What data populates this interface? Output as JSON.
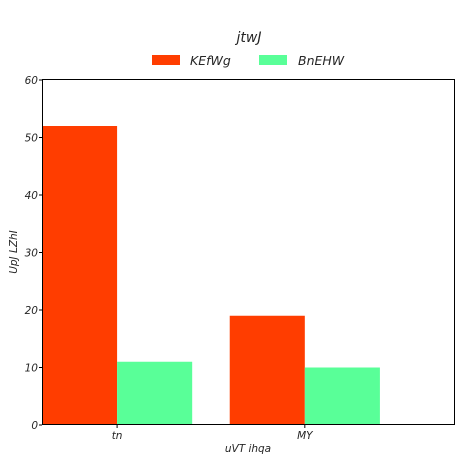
{
  "chart_data": {
    "type": "bar",
    "title": "jtwJ",
    "xlabel": "uVT ihqa",
    "ylabel": "UpJ LZhI",
    "categories": [
      "tn",
      "MY"
    ],
    "series": [
      {
        "name": "KEfWg",
        "color": "#ff3d00",
        "values": [
          52,
          19
        ]
      },
      {
        "name": "BnEHW",
        "color": "#59ff98",
        "values": [
          11,
          10
        ]
      }
    ],
    "ylim": [
      0,
      60
    ],
    "yticks": [
      0,
      10,
      20,
      30,
      40,
      50,
      60
    ],
    "grid": false,
    "legend_position": "top-center"
  }
}
